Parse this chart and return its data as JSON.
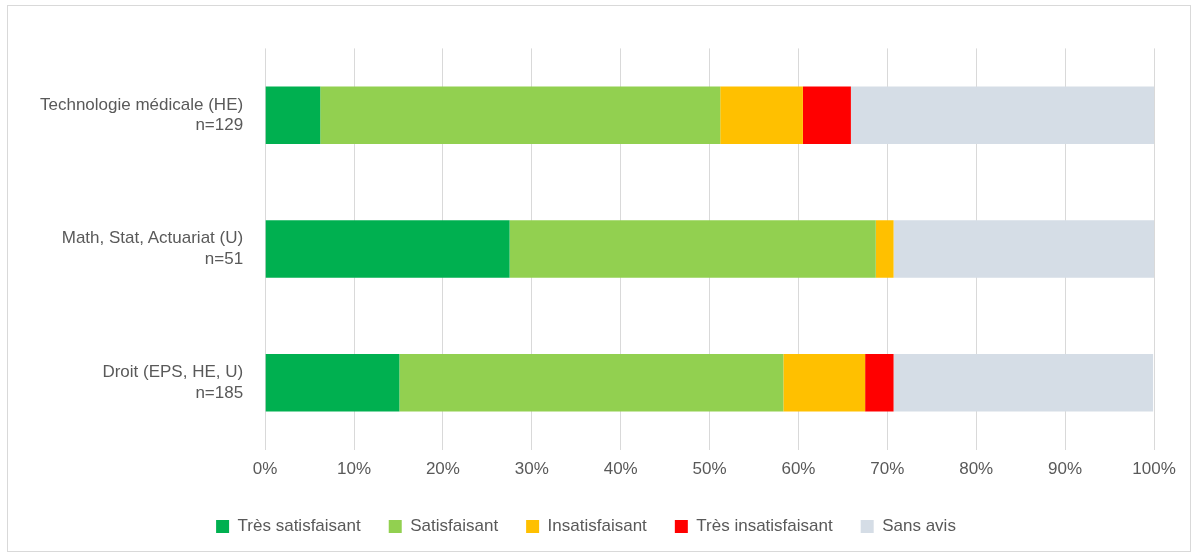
{
  "chart_data": {
    "type": "bar",
    "orientation": "horizontal",
    "stacked": true,
    "categories": [
      "Technologie médicale (HE)\nn=129",
      "Math, Stat, Actuariat (U)\nn=51",
      "Droit (EPS, HE, U)\nn=185"
    ],
    "series": [
      {
        "name": "Très satisfaisant",
        "color": "#00b050",
        "values": [
          6.2,
          27.5,
          15.1
        ]
      },
      {
        "name": "Satisfaisant",
        "color": "#92d050",
        "values": [
          45.0,
          41.2,
          43.2
        ]
      },
      {
        "name": "Insatisfaisant",
        "color": "#ffc000",
        "values": [
          9.3,
          2.0,
          9.2
        ]
      },
      {
        "name": "Très insatisfaisant",
        "color": "#ff0000",
        "values": [
          5.4,
          0,
          3.2
        ]
      },
      {
        "name": "Sans avis",
        "color": "#d5dde6",
        "values": [
          34.1,
          29.4,
          29.2
        ]
      }
    ],
    "xlim": [
      0,
      100
    ],
    "xticks": [
      {
        "value": 0,
        "label": "0%"
      },
      {
        "value": 10,
        "label": "10%"
      },
      {
        "value": 20,
        "label": "20%"
      },
      {
        "value": 30,
        "label": "30%"
      },
      {
        "value": 40,
        "label": "40%"
      },
      {
        "value": 50,
        "label": "50%"
      },
      {
        "value": 60,
        "label": "60%"
      },
      {
        "value": 70,
        "label": "70%"
      },
      {
        "value": 80,
        "label": "80%"
      },
      {
        "value": 90,
        "label": "90%"
      },
      {
        "value": 100,
        "label": "100%"
      }
    ],
    "grid": "x",
    "legend": "bottom"
  }
}
